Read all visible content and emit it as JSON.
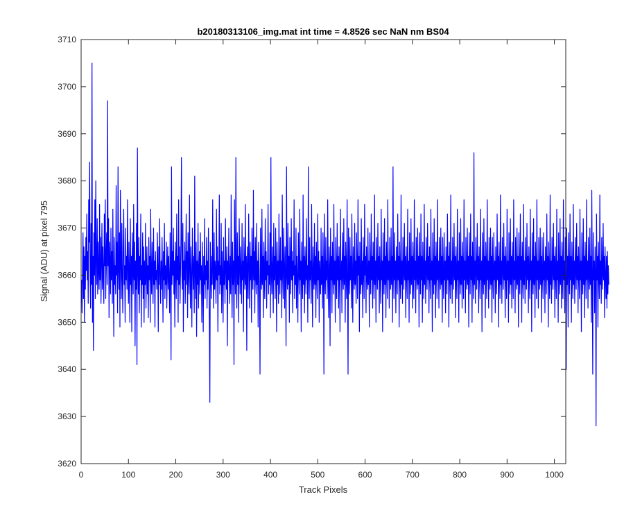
{
  "chart_data": {
    "type": "line",
    "title": "b20180313106_img.mat int time = 4.8526 sec  NaN nm BS04",
    "xlabel": "Track Pixels",
    "ylabel": "Signal (ADU) at pixel 795",
    "xlim": [
      0,
      1024
    ],
    "ylim": [
      3620,
      3710
    ],
    "xticks": [
      "0",
      "100",
      "200",
      "300",
      "400",
      "500",
      "600",
      "700",
      "800",
      "900",
      "1000"
    ],
    "yticks": [
      "3620",
      "3630",
      "3640",
      "3650",
      "3660",
      "3670",
      "3680",
      "3690",
      "3700",
      "3710"
    ],
    "grid": false,
    "legend": "none",
    "series": [
      {
        "color": "#0000ff",
        "x_start": 1,
        "x_step": 1,
        "values": [
          3659,
          3652,
          3661,
          3669,
          3655,
          3666,
          3650,
          3664,
          3657,
          3668,
          3661,
          3673,
          3659,
          3665,
          3654,
          3676,
          3667,
          3684,
          3660,
          3653,
          3671,
          3658,
          3705,
          3650,
          3664,
          3644,
          3669,
          3660,
          3676,
          3655,
          3680,
          3663,
          3658,
          3672,
          3656,
          3667,
          3661,
          3657,
          3675,
          3659,
          3668,
          3654,
          3663,
          3671,
          3657,
          3666,
          3660,
          3654,
          3673,
          3662,
          3676,
          3655,
          3664,
          3669,
          3658,
          3697,
          3662,
          3672,
          3651,
          3667,
          3663,
          3656,
          3670,
          3659,
          3665,
          3654,
          3674,
          3661,
          3647,
          3668,
          3658,
          3662,
          3656,
          3679,
          3660,
          3667,
          3652,
          3683,
          3661,
          3657,
          3669,
          3649,
          3678,
          3663,
          3655,
          3671,
          3660,
          3652,
          3666,
          3674,
          3658,
          3662,
          3650,
          3670,
          3659,
          3664,
          3657,
          3676,
          3661,
          3654,
          3667,
          3660,
          3650,
          3672,
          3658,
          3664,
          3648,
          3669,
          3662,
          3656,
          3675,
          3659,
          3667,
          3645,
          3663,
          3657,
          3671,
          3641,
          3687,
          3661,
          3656,
          3668,
          3652,
          3664,
          3659,
          3673,
          3649,
          3662,
          3658,
          3669,
          3655,
          3666,
          3650,
          3663,
          3658,
          3671,
          3653,
          3660,
          3666,
          3656,
          3662,
          3651,
          3668,
          3659,
          3664,
          3650,
          3674,
          3660,
          3656,
          3667,
          3661,
          3654,
          3670,
          3658,
          3663,
          3649,
          3665,
          3659,
          3661,
          3657,
          3669,
          3662,
          3648,
          3666,
          3658,
          3672,
          3660,
          3654,
          3663,
          3657,
          3668,
          3661,
          3650,
          3665,
          3659,
          3671,
          3655,
          3662,
          3658,
          3667,
          3653,
          3660,
          3666,
          3657,
          3664,
          3659,
          3652,
          3669,
          3661,
          3642,
          3683,
          3658,
          3665,
          3660,
          3670,
          3656,
          3663,
          3649,
          3667,
          3661,
          3655,
          3673,
          3659,
          3664,
          3650,
          3676,
          3658,
          3666,
          3654,
          3661,
          3668,
          3685,
          3660,
          3657,
          3671,
          3648,
          3663,
          3659,
          3667,
          3654,
          3662,
          3673,
          3658,
          3665,
          3651,
          3669,
          3660,
          3656,
          3677,
          3661,
          3653,
          3666,
          3659,
          3649,
          3670,
          3662,
          3657,
          3664,
          3652,
          3681,
          3660,
          3655,
          3667,
          3647,
          3663,
          3658,
          3671,
          3653,
          3661,
          3665,
          3656,
          3669,
          3659,
          3662,
          3650,
          3667,
          3660,
          3648,
          3664,
          3658,
          3672,
          3655,
          3662,
          3659,
          3668,
          3653,
          3663,
          3657,
          3670,
          3659,
          3650,
          3633,
          3667,
          3661,
          3655,
          3664,
          3658,
          3676,
          3660,
          3653,
          3669,
          3657,
          3663,
          3661,
          3654,
          3674,
          3659,
          3666,
          3648,
          3663,
          3660,
          3677,
          3656,
          3662,
          3658,
          3671,
          3652,
          3665,
          3660,
          3650,
          3668,
          3658,
          3663,
          3654,
          3672,
          3661,
          3657,
          3666,
          3645,
          3663,
          3659,
          3670,
          3654,
          3661,
          3664,
          3656,
          3677,
          3660,
          3651,
          3667,
          3658,
          3663,
          3641,
          3676,
          3661,
          3656,
          3685,
          3660,
          3653,
          3669,
          3658,
          3664,
          3650,
          3672,
          3662,
          3656,
          3666,
          3660,
          3654,
          3671,
          3659,
          3663,
          3648,
          3668,
          3661,
          3657,
          3675,
          3658,
          3664,
          3644,
          3666,
          3660,
          3655,
          3673,
          3662,
          3653,
          3667,
          3659,
          3664,
          3650,
          3670,
          3661,
          3657,
          3678,
          3659,
          3665,
          3652,
          3668,
          3660,
          3656,
          3671,
          3658,
          3663,
          3649,
          3667,
          3662,
          3655,
          3639,
          3670,
          3660,
          3657,
          3674,
          3658,
          3664,
          3651,
          3667,
          3661,
          3655,
          3672,
          3659,
          3665,
          3653,
          3663,
          3660,
          3675,
          3656,
          3662,
          3658,
          3669,
          3651,
          3685,
          3660,
          3656,
          3666,
          3661,
          3652,
          3671,
          3659,
          3664,
          3655,
          3670,
          3662,
          3648,
          3667,
          3658,
          3663,
          3654,
          3673,
          3660,
          3656,
          3668,
          3659,
          3663,
          3651,
          3677,
          3660,
          3655,
          3670,
          3662,
          3653,
          3666,
          3659,
          3645,
          3683,
          3660,
          3657,
          3671,
          3658,
          3664,
          3650,
          3668,
          3662,
          3656,
          3672,
          3659,
          3665,
          3652,
          3663,
          3660,
          3676,
          3655,
          3662,
          3658,
          3670,
          3653,
          3664,
          3659,
          3650,
          3669,
          3661,
          3656,
          3674,
          3659,
          3663,
          3648,
          3667,
          3660,
          3655,
          3677,
          3658,
          3664,
          3652,
          3666,
          3661,
          3656,
          3672,
          3659,
          3662,
          3650,
          3683,
          3660,
          3655,
          3668,
          3659,
          3663,
          3654,
          3675,
          3661,
          3649,
          3666,
          3660,
          3657,
          3671,
          3658,
          3664,
          3651,
          3667,
          3660,
          3655,
          3673,
          3659,
          3665,
          3650,
          3663,
          3660,
          3656,
          3670,
          3658,
          3664,
          3653,
          3669,
          3661,
          3639,
          3673,
          3660,
          3656,
          3668,
          3659,
          3663,
          3655,
          3676,
          3660,
          3651,
          3666,
          3662,
          3645,
          3670,
          3659,
          3664,
          3652,
          3667,
          3660,
          3656,
          3675,
          3658,
          3663,
          3650,
          3668,
          3661,
          3655,
          3671,
          3659,
          3664,
          3653,
          3666,
          3660,
          3648,
          3674,
          3659,
          3663,
          3652,
          3669,
          3660,
          3657,
          3672,
          3658,
          3664,
          3650,
          3667,
          3661,
          3655,
          3676,
          3659,
          3639,
          3670,
          3660,
          3656,
          3668,
          3659,
          3664,
          3653,
          3673,
          3661,
          3650,
          3666,
          3660,
          3657,
          3671,
          3658,
          3663,
          3654,
          3669,
          3661,
          3655,
          3676,
          3660,
          3664,
          3648,
          3667,
          3659,
          3656,
          3672,
          3658,
          3663,
          3651,
          3668,
          3661,
          3655,
          3675,
          3660,
          3664,
          3652,
          3666,
          3659,
          3657,
          3670,
          3658,
          3663,
          3649,
          3669,
          3661,
          3656,
          3673,
          3659,
          3664,
          3653,
          3667,
          3660,
          3655,
          3677,
          3658,
          3663,
          3650,
          3668,
          3661,
          3657,
          3671,
          3659,
          3664,
          3652,
          3666,
          3660,
          3654,
          3674,
          3659,
          3663,
          3648,
          3669,
          3660,
          3656,
          3672,
          3658,
          3664,
          3651,
          3667,
          3661,
          3655,
          3676,
          3659,
          3663,
          3653,
          3668,
          3660,
          3657,
          3670,
          3658,
          3664,
          3650,
          3683,
          3660,
          3655,
          3669,
          3659,
          3663,
          3652,
          3666,
          3661,
          3656,
          3673,
          3659,
          3664,
          3649,
          3667,
          3660,
          3655,
          3677,
          3658,
          3663,
          3654,
          3668,
          3661,
          3657,
          3671,
          3659,
          3664,
          3651,
          3666,
          3660,
          3655,
          3674,
          3659,
          3663,
          3650,
          3669,
          3660,
          3656,
          3672,
          3658,
          3664,
          3653,
          3667,
          3661,
          3655,
          3676,
          3659,
          3663,
          3652,
          3668,
          3660,
          3657,
          3670,
          3658,
          3664,
          3649,
          3669,
          3661,
          3656,
          3673,
          3659,
          3664,
          3650,
          3667,
          3660,
          3655,
          3675,
          3658,
          3663,
          3654,
          3668,
          3661,
          3657,
          3671,
          3659,
          3664,
          3652,
          3666,
          3660,
          3655,
          3674,
          3659,
          3663,
          3648,
          3669,
          3660,
          3656,
          3672,
          3658,
          3664,
          3651,
          3667,
          3661,
          3655,
          3676,
          3659,
          3663,
          3653,
          3668,
          3660,
          3657,
          3670,
          3658,
          3664,
          3650,
          3668,
          3660,
          3655,
          3669,
          3659,
          3663,
          3652,
          3666,
          3661,
          3656,
          3673,
          3659,
          3664,
          3649,
          3667,
          3660,
          3655,
          3677,
          3658,
          3663,
          3654,
          3668,
          3661,
          3657,
          3671,
          3659,
          3664,
          3651,
          3666,
          3660,
          3655,
          3674,
          3659,
          3663,
          3650,
          3669,
          3660,
          3656,
          3672,
          3658,
          3664,
          3653,
          3667,
          3661,
          3655,
          3676,
          3659,
          3663,
          3652,
          3668,
          3660,
          3657,
          3670,
          3658,
          3664,
          3649,
          3669,
          3661,
          3656,
          3673,
          3659,
          3664,
          3650,
          3667,
          3660,
          3655,
          3686,
          3658,
          3663,
          3654,
          3668,
          3661,
          3657,
          3671,
          3659,
          3664,
          3652,
          3666,
          3660,
          3655,
          3674,
          3659,
          3663,
          3648,
          3669,
          3660,
          3656,
          3672,
          3658,
          3664,
          3651,
          3667,
          3661,
          3655,
          3676,
          3659,
          3663,
          3653,
          3668,
          3660,
          3657,
          3670,
          3658,
          3664,
          3650,
          3668,
          3660,
          3655,
          3669,
          3659,
          3663,
          3652,
          3666,
          3661,
          3656,
          3673,
          3659,
          3664,
          3649,
          3667,
          3660,
          3655,
          3677,
          3658,
          3663,
          3654,
          3668,
          3661,
          3657,
          3671,
          3659,
          3664,
          3651,
          3666,
          3660,
          3655,
          3674,
          3659,
          3663,
          3650,
          3669,
          3660,
          3656,
          3672,
          3658,
          3664,
          3653,
          3667,
          3661,
          3655,
          3676,
          3659,
          3663,
          3652,
          3668,
          3660,
          3657,
          3670,
          3658,
          3664,
          3649,
          3669,
          3661,
          3656,
          3673,
          3659,
          3664,
          3650,
          3667,
          3660,
          3655,
          3675,
          3658,
          3663,
          3654,
          3668,
          3661,
          3657,
          3671,
          3659,
          3664,
          3652,
          3666,
          3660,
          3655,
          3674,
          3659,
          3663,
          3648,
          3669,
          3660,
          3656,
          3672,
          3658,
          3664,
          3651,
          3667,
          3661,
          3655,
          3676,
          3659,
          3663,
          3653,
          3668,
          3660,
          3657,
          3670,
          3658,
          3664,
          3650,
          3668,
          3660,
          3655,
          3669,
          3659,
          3663,
          3652,
          3666,
          3661,
          3656,
          3673,
          3659,
          3664,
          3649,
          3667,
          3660,
          3655,
          3677,
          3658,
          3663,
          3654,
          3668,
          3661,
          3657,
          3671,
          3659,
          3664,
          3651,
          3666,
          3660,
          3655,
          3674,
          3659,
          3663,
          3650,
          3669,
          3660,
          3656,
          3672,
          3658,
          3664,
          3653,
          3667,
          3661,
          3655,
          3676,
          3659,
          3663,
          3652,
          3668,
          3660,
          3640,
          3670,
          3658,
          3664,
          3649,
          3669,
          3661,
          3656,
          3673,
          3659,
          3664,
          3650,
          3667,
          3660,
          3655,
          3675,
          3658,
          3663,
          3654,
          3668,
          3661,
          3657,
          3671,
          3659,
          3664,
          3652,
          3666,
          3660,
          3655,
          3674,
          3659,
          3663,
          3648,
          3669,
          3660,
          3656,
          3672,
          3658,
          3664,
          3651,
          3667,
          3661,
          3655,
          3676,
          3659,
          3663,
          3653,
          3668,
          3660,
          3657,
          3670,
          3658,
          3664,
          3650,
          3678,
          3660,
          3639,
          3669,
          3659,
          3663,
          3652,
          3666,
          3661,
          3628,
          3673,
          3659,
          3664,
          3649,
          3667,
          3660,
          3655,
          3677,
          3658,
          3663,
          3654,
          3668,
          3661,
          3657,
          3671,
          3659,
          3664,
          3651,
          3666,
          3660,
          3655,
          3664,
          3653,
          3665,
          3656,
          3662,
          3658
        ]
      }
    ]
  }
}
